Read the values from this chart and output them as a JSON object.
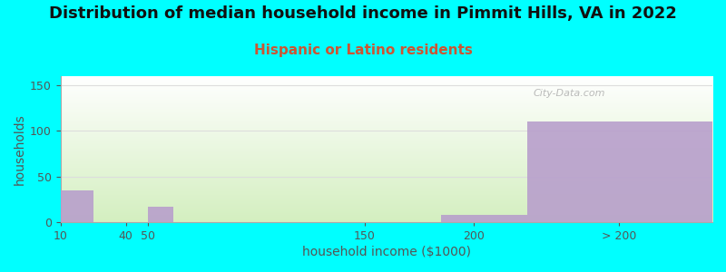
{
  "title": "Distribution of median household income in Pimmit Hills, VA in 2022",
  "subtitle": "Hispanic or Latino residents",
  "xlabel": "household income ($1000)",
  "ylabel": "households",
  "background_color": "#00FFFF",
  "plot_bg_top": "#ffffff",
  "plot_bg_bottom": "#d4efc0",
  "bar_color": "#b89fcc",
  "categories": [
    "10",
    "40",
    "50",
    "150",
    "200",
    "> 200"
  ],
  "values": [
    35,
    0,
    17,
    0,
    8,
    110
  ],
  "bar_left_edges": [
    10,
    40,
    50,
    150,
    185,
    225
  ],
  "bar_right_edges": [
    25,
    50,
    62,
    160,
    225,
    310
  ],
  "xlim": [
    10,
    310
  ],
  "ylim": [
    0,
    160
  ],
  "yticks": [
    0,
    50,
    100,
    150
  ],
  "tick_positions": [
    10,
    40,
    50,
    150,
    200,
    267
  ],
  "watermark": "City-Data.com",
  "title_fontsize": 13,
  "subtitle_fontsize": 11,
  "subtitle_color": "#cc5533",
  "axis_label_fontsize": 10,
  "tick_fontsize": 9,
  "grid_color": "#dddddd"
}
